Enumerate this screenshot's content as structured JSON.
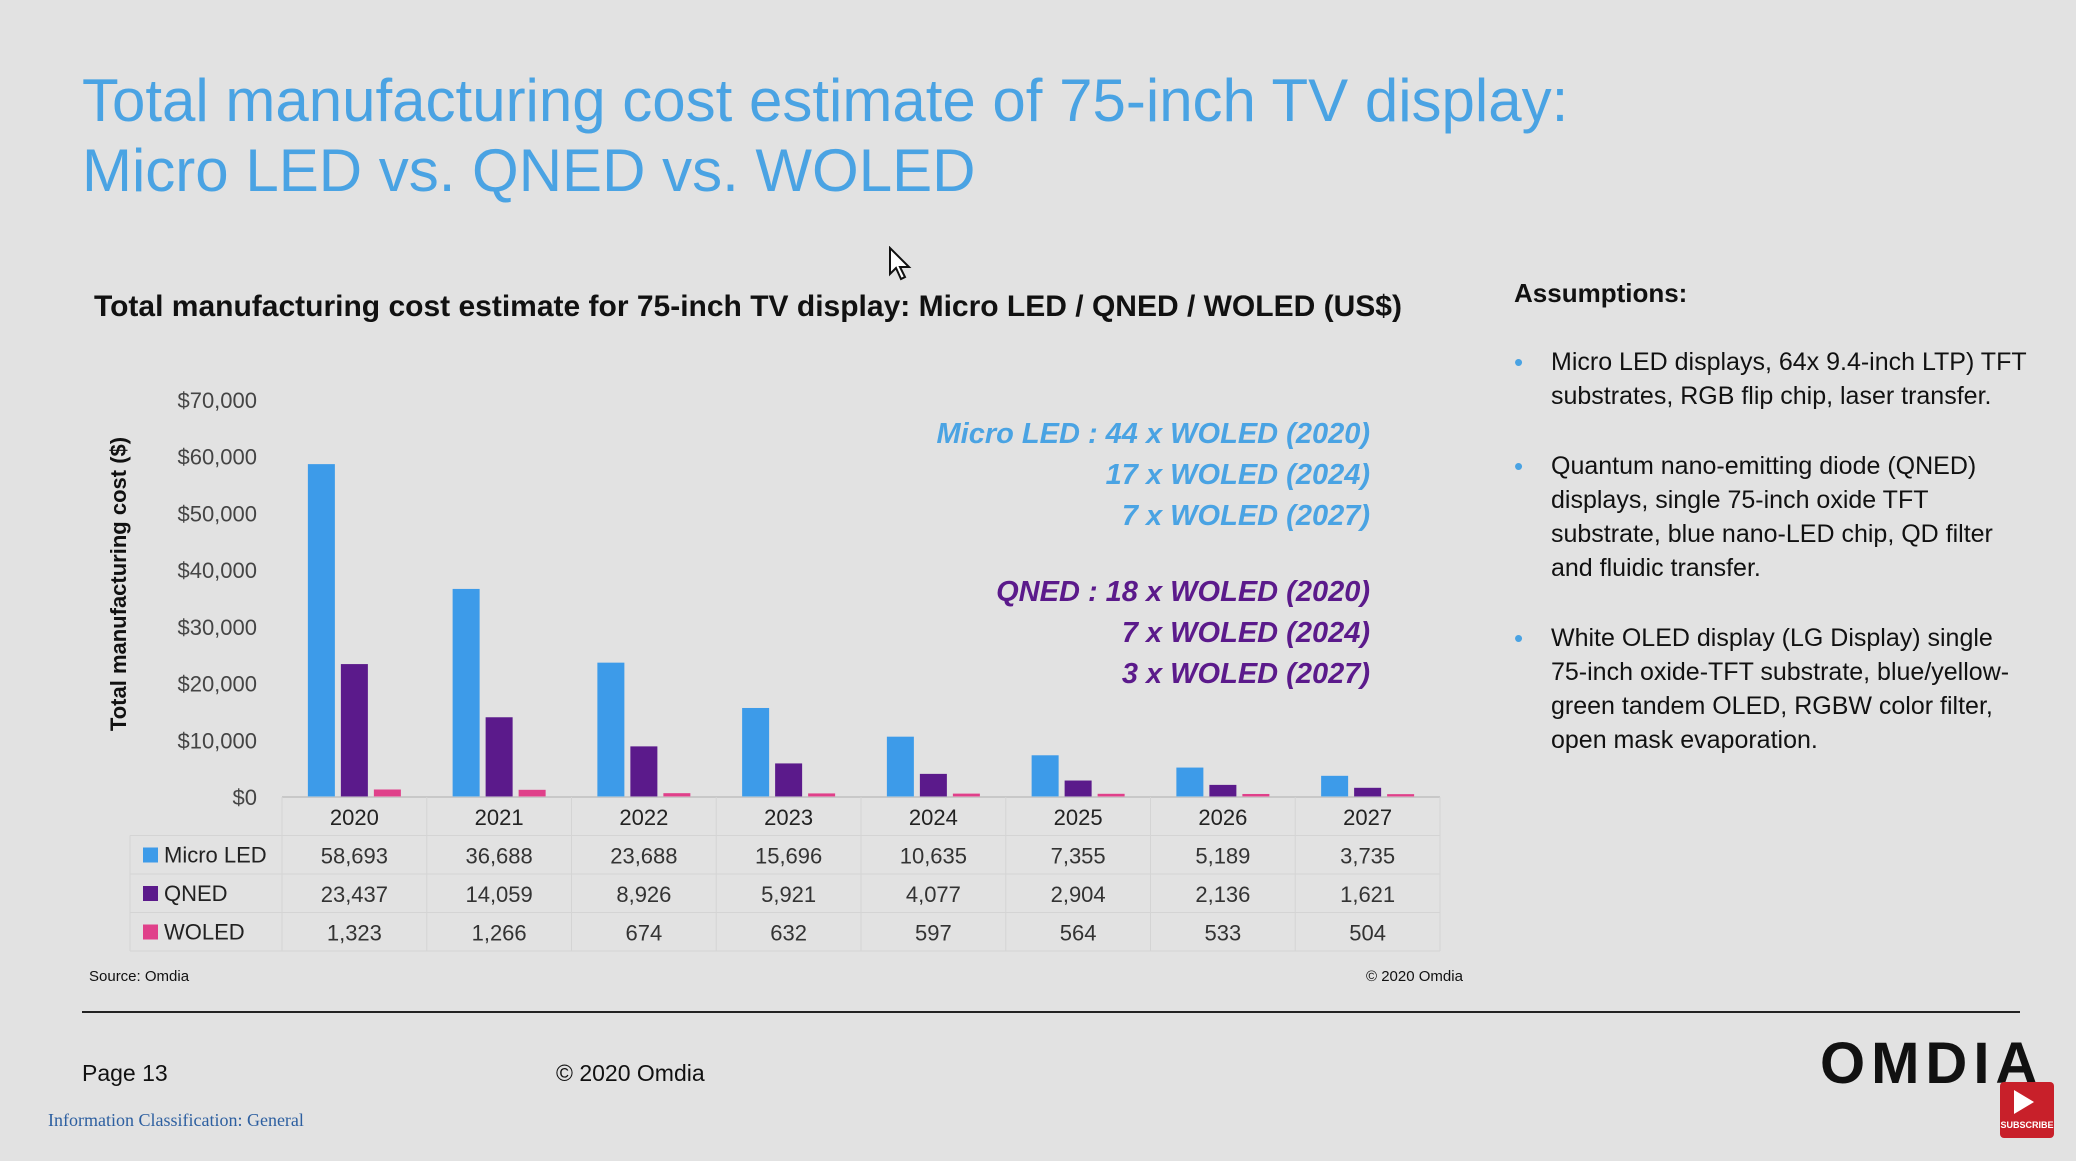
{
  "slide": {
    "title_line1": "Total manufacturing cost estimate of 75-inch TV display:",
    "title_line2": "Micro LED vs. QNED vs. WOLED"
  },
  "chart_data": {
    "type": "bar",
    "title": "Total manufacturing cost estimate for 75-inch TV display: Micro LED / QNED / WOLED (US$)",
    "xlabel": "",
    "ylabel": "Total manufacturing cost ($)",
    "ylim": [
      0,
      70000
    ],
    "y_ticks": [
      0,
      10000,
      20000,
      30000,
      40000,
      50000,
      60000,
      70000
    ],
    "y_tick_labels": [
      "$0",
      "$10,000",
      "$20,000",
      "$30,000",
      "$40,000",
      "$50,000",
      "$60,000",
      "$70,000"
    ],
    "categories": [
      "2020",
      "2021",
      "2022",
      "2023",
      "2024",
      "2025",
      "2026",
      "2027"
    ],
    "series": [
      {
        "name": "Micro LED",
        "color": "#3d9be9",
        "values": [
          58693,
          36688,
          23688,
          15696,
          10635,
          7355,
          5189,
          3735
        ],
        "labels": [
          "58,693",
          "36,688",
          "23,688",
          "15,696",
          "10,635",
          "7,355",
          "5,189",
          "3,735"
        ]
      },
      {
        "name": "QNED",
        "color": "#5b1a8b",
        "values": [
          23437,
          14059,
          8926,
          5921,
          4077,
          2904,
          2136,
          1621
        ],
        "labels": [
          "23,437",
          "14,059",
          "8,926",
          "5,921",
          "4,077",
          "2,904",
          "2,136",
          "1,621"
        ]
      },
      {
        "name": "WOLED",
        "color": "#e0408a",
        "values": [
          1323,
          1266,
          674,
          632,
          597,
          564,
          533,
          504
        ],
        "labels": [
          "1,323",
          "1,266",
          "674",
          "632",
          "597",
          "564",
          "533",
          "504"
        ]
      }
    ],
    "legend": "data-table",
    "grid": false,
    "annotations": {
      "micro_led": [
        "Micro LED : 44 x WOLED (2020)",
        "17 x WOLED (2024)",
        "7 x WOLED (2027)"
      ],
      "micro_led_color": "#4aa3e3",
      "qned": [
        "QNED : 18 x WOLED (2020)",
        "7 x WOLED (2024)",
        "3 x WOLED (2027)"
      ],
      "qned_color": "#5b1a8b"
    }
  },
  "assumptions": {
    "title": "Assumptions:",
    "items": [
      "Micro LED displays, 64x 9.4-inch LTP) TFT substrates, RGB flip chip, laser transfer.",
      "Quantum nano-emitting diode (QNED) displays, single 75-inch oxide TFT substrate, blue nano-LED chip, QD filter and fluidic transfer.",
      "White OLED display (LG Display) single 75-inch oxide-TFT substrate, blue/yellow-green tandem OLED, RGBW color filter, open mask evaporation."
    ]
  },
  "footer": {
    "source": "Source: Omdia",
    "copyright_small": "© 2020 Omdia",
    "page": "Page 13",
    "copyright": "© 2020 Omdia",
    "classification": "Information Classification: General",
    "logo": "OMDIA",
    "subscribe": "SUBSCRIBE"
  }
}
